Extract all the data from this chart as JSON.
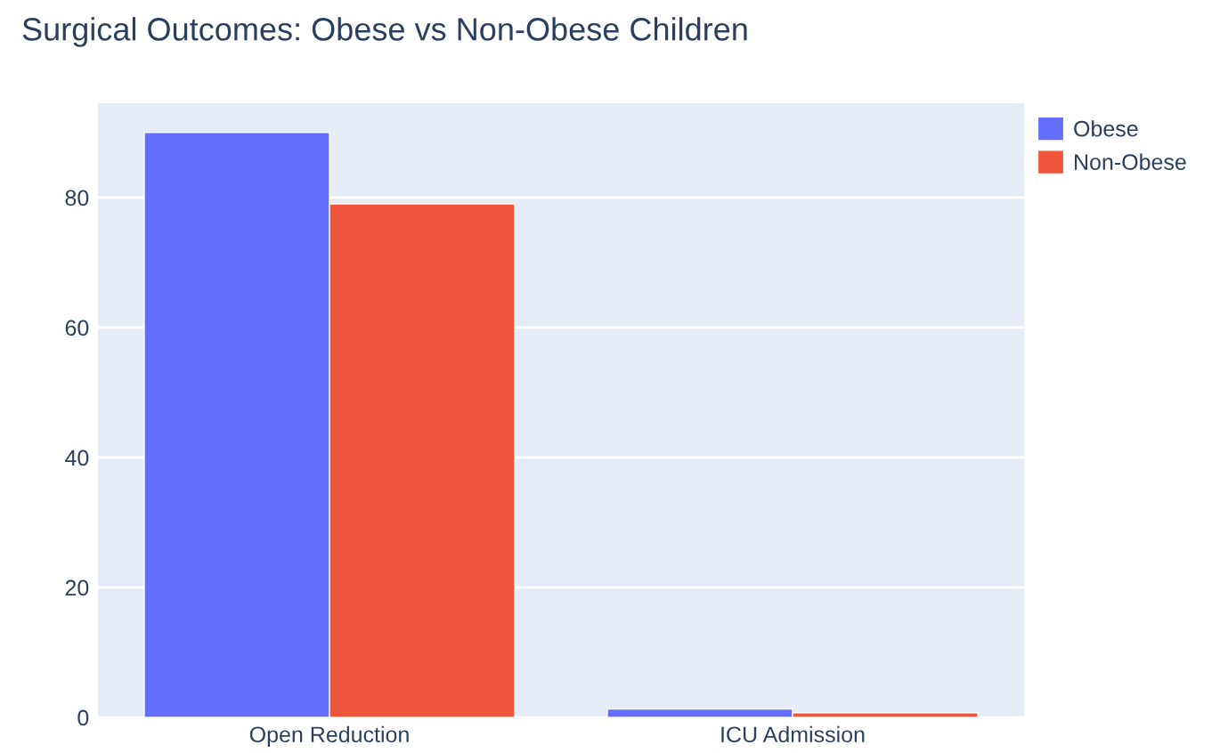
{
  "chart_data": {
    "type": "bar",
    "title": "Surgical Outcomes: Obese vs Non-Obese Children",
    "categories": [
      "Open Reduction",
      "ICU Admission"
    ],
    "series": [
      {
        "name": "Obese",
        "color": "#636efa",
        "values": [
          90,
          1.3
        ]
      },
      {
        "name": "Non-Obese",
        "color": "#ef553b",
        "values": [
          79,
          0.7
        ]
      }
    ],
    "ylim": [
      0,
      94.5
    ],
    "yticks": [
      0,
      20,
      40,
      60,
      80
    ],
    "grid": "y",
    "legend": "top right"
  }
}
